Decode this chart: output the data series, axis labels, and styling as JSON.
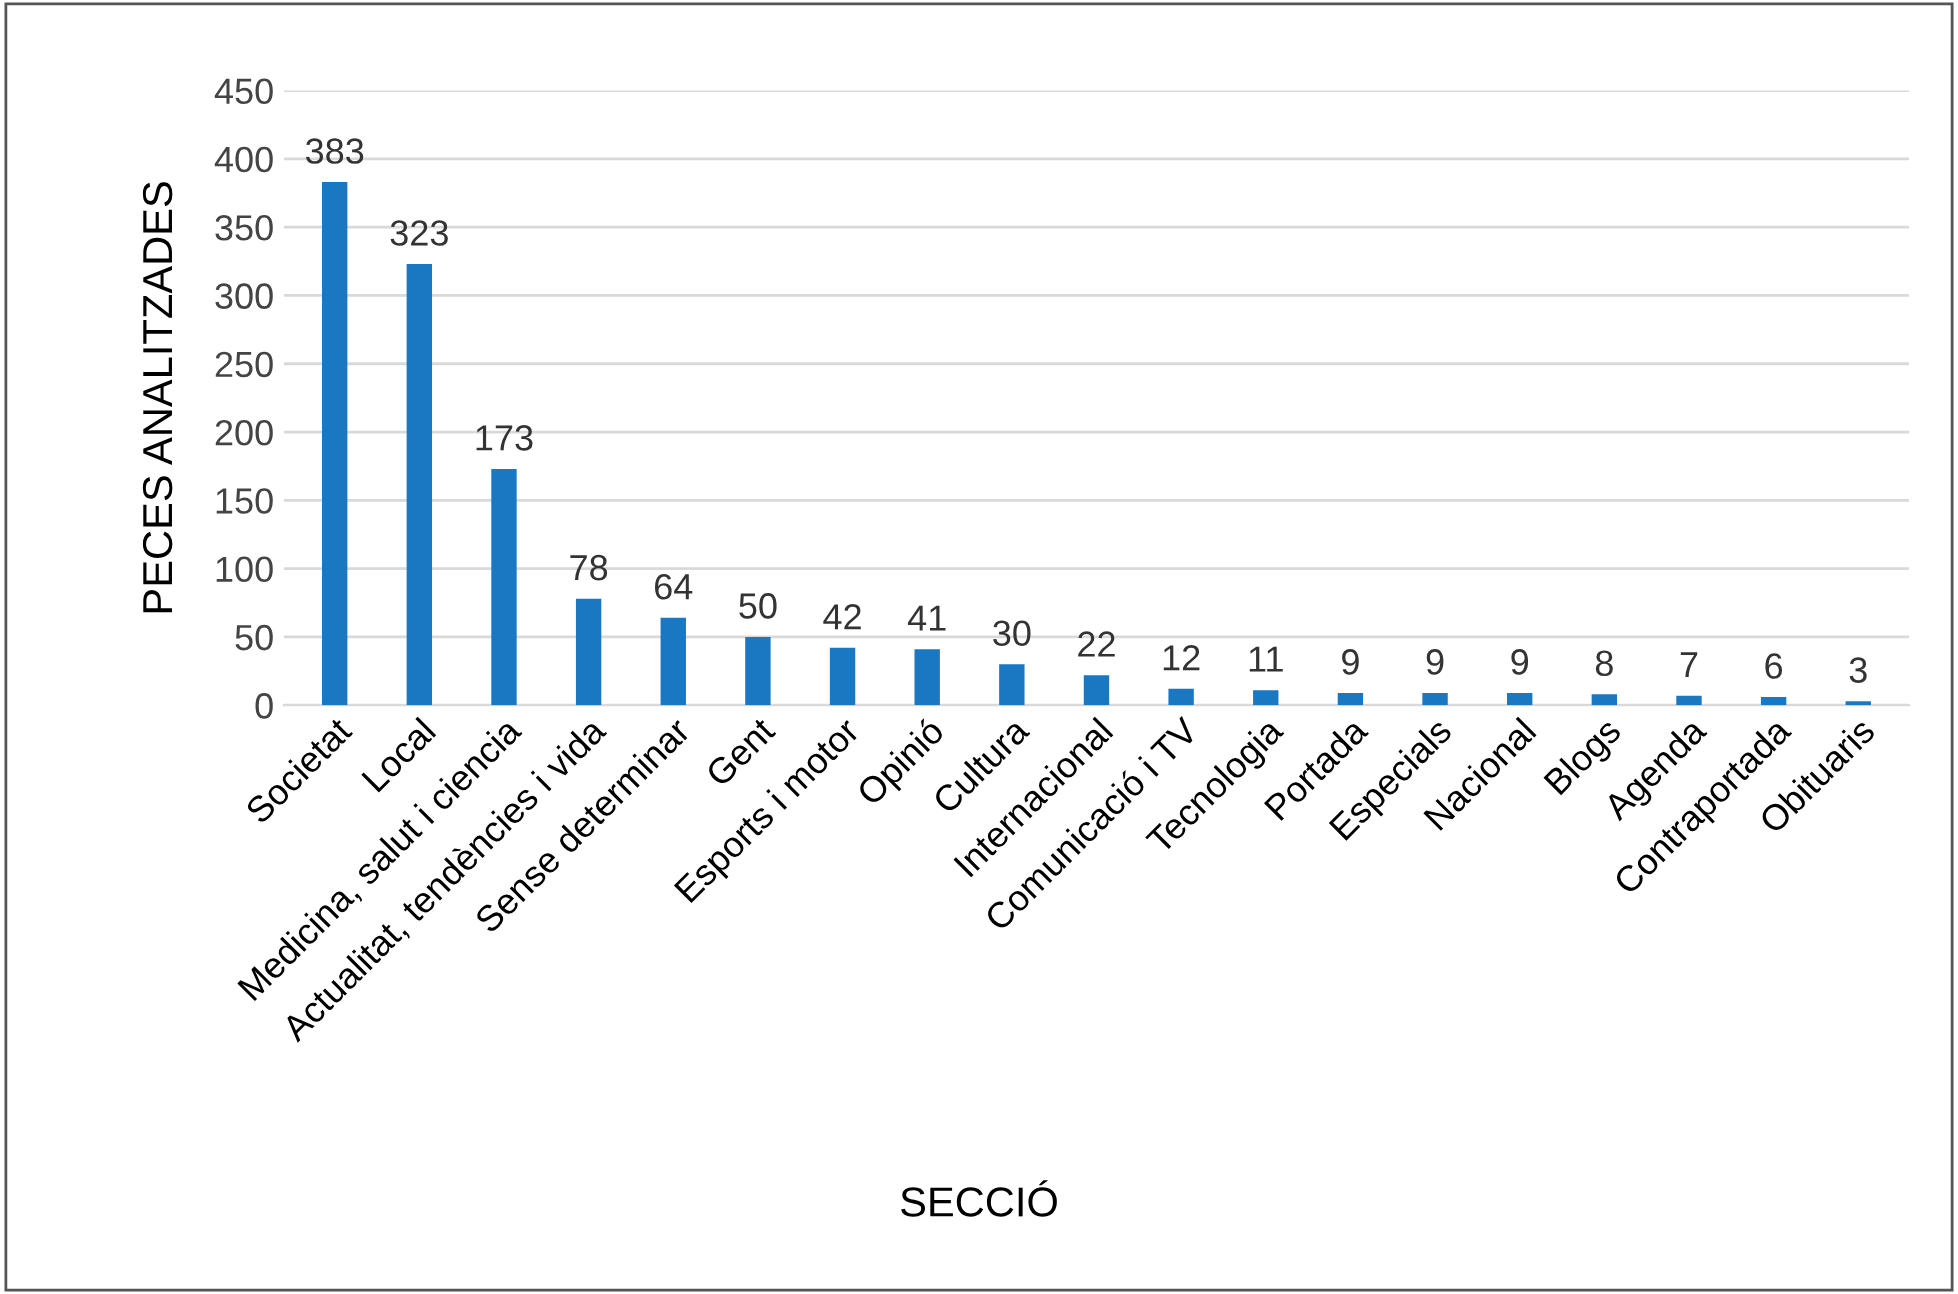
{
  "chart_data": {
    "type": "bar",
    "xlabel": "SECCIÓ",
    "ylabel": "PECES ANALITZADES",
    "categories": [
      "Societat",
      "Local",
      "Medicina, salut i ciencia",
      "Actualitat, tendències i vida",
      "Sense determinar",
      "Gent",
      "Esports i motor",
      "Opinió",
      "Cultura",
      "Internacional",
      "Comunicació i TV",
      "Tecnologia",
      "Portada",
      "Especials",
      "Nacional",
      "Blogs",
      "Agenda",
      "Contraportada",
      "Obituaris"
    ],
    "values": [
      383,
      323,
      173,
      78,
      64,
      50,
      42,
      41,
      30,
      22,
      12,
      11,
      9,
      9,
      9,
      8,
      7,
      6,
      3
    ],
    "color": "#1a78c2",
    "ylim": [
      0,
      450
    ],
    "yticks": [
      0,
      50,
      100,
      150,
      200,
      250,
      300,
      350,
      400,
      450
    ],
    "grid": "y",
    "data_labels": true
  }
}
